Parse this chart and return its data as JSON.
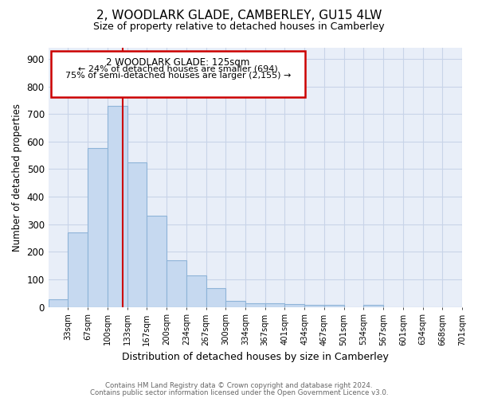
{
  "title": "2, WOODLARK GLADE, CAMBERLEY, GU15 4LW",
  "subtitle": "Size of property relative to detached houses in Camberley",
  "xlabel": "Distribution of detached houses by size in Camberley",
  "ylabel": "Number of detached properties",
  "footnote1": "Contains HM Land Registry data © Crown copyright and database right 2024.",
  "footnote2": "Contains public sector information licensed under the Open Government Licence v3.0.",
  "bar_labels": [
    "33sqm",
    "67sqm",
    "100sqm",
    "133sqm",
    "167sqm",
    "200sqm",
    "234sqm",
    "267sqm",
    "300sqm",
    "334sqm",
    "367sqm",
    "401sqm",
    "434sqm",
    "467sqm",
    "501sqm",
    "534sqm",
    "567sqm",
    "601sqm",
    "634sqm",
    "668sqm",
    "701sqm"
  ],
  "bar_values": [
    27,
    270,
    575,
    730,
    525,
    330,
    170,
    115,
    67,
    22,
    13,
    14,
    11,
    9,
    8,
    0,
    8,
    0,
    0,
    0,
    0
  ],
  "bar_color": "#c6d9f0",
  "bar_edge_color": "#8eb4d8",
  "property_line_label": "2 WOODLARK GLADE: 125sqm",
  "annotation_line1": "← 24% of detached houses are smaller (694)",
  "annotation_line2": "75% of semi-detached houses are larger (2,155) →",
  "annotation_box_color": "#ffffff",
  "annotation_box_edge": "#cc0000",
  "red_line_color": "#cc0000",
  "ylim": [
    0,
    940
  ],
  "yticks": [
    0,
    100,
    200,
    300,
    400,
    500,
    600,
    700,
    800,
    900
  ],
  "grid_color": "#c8d4e8",
  "bg_color": "#e8eef8"
}
